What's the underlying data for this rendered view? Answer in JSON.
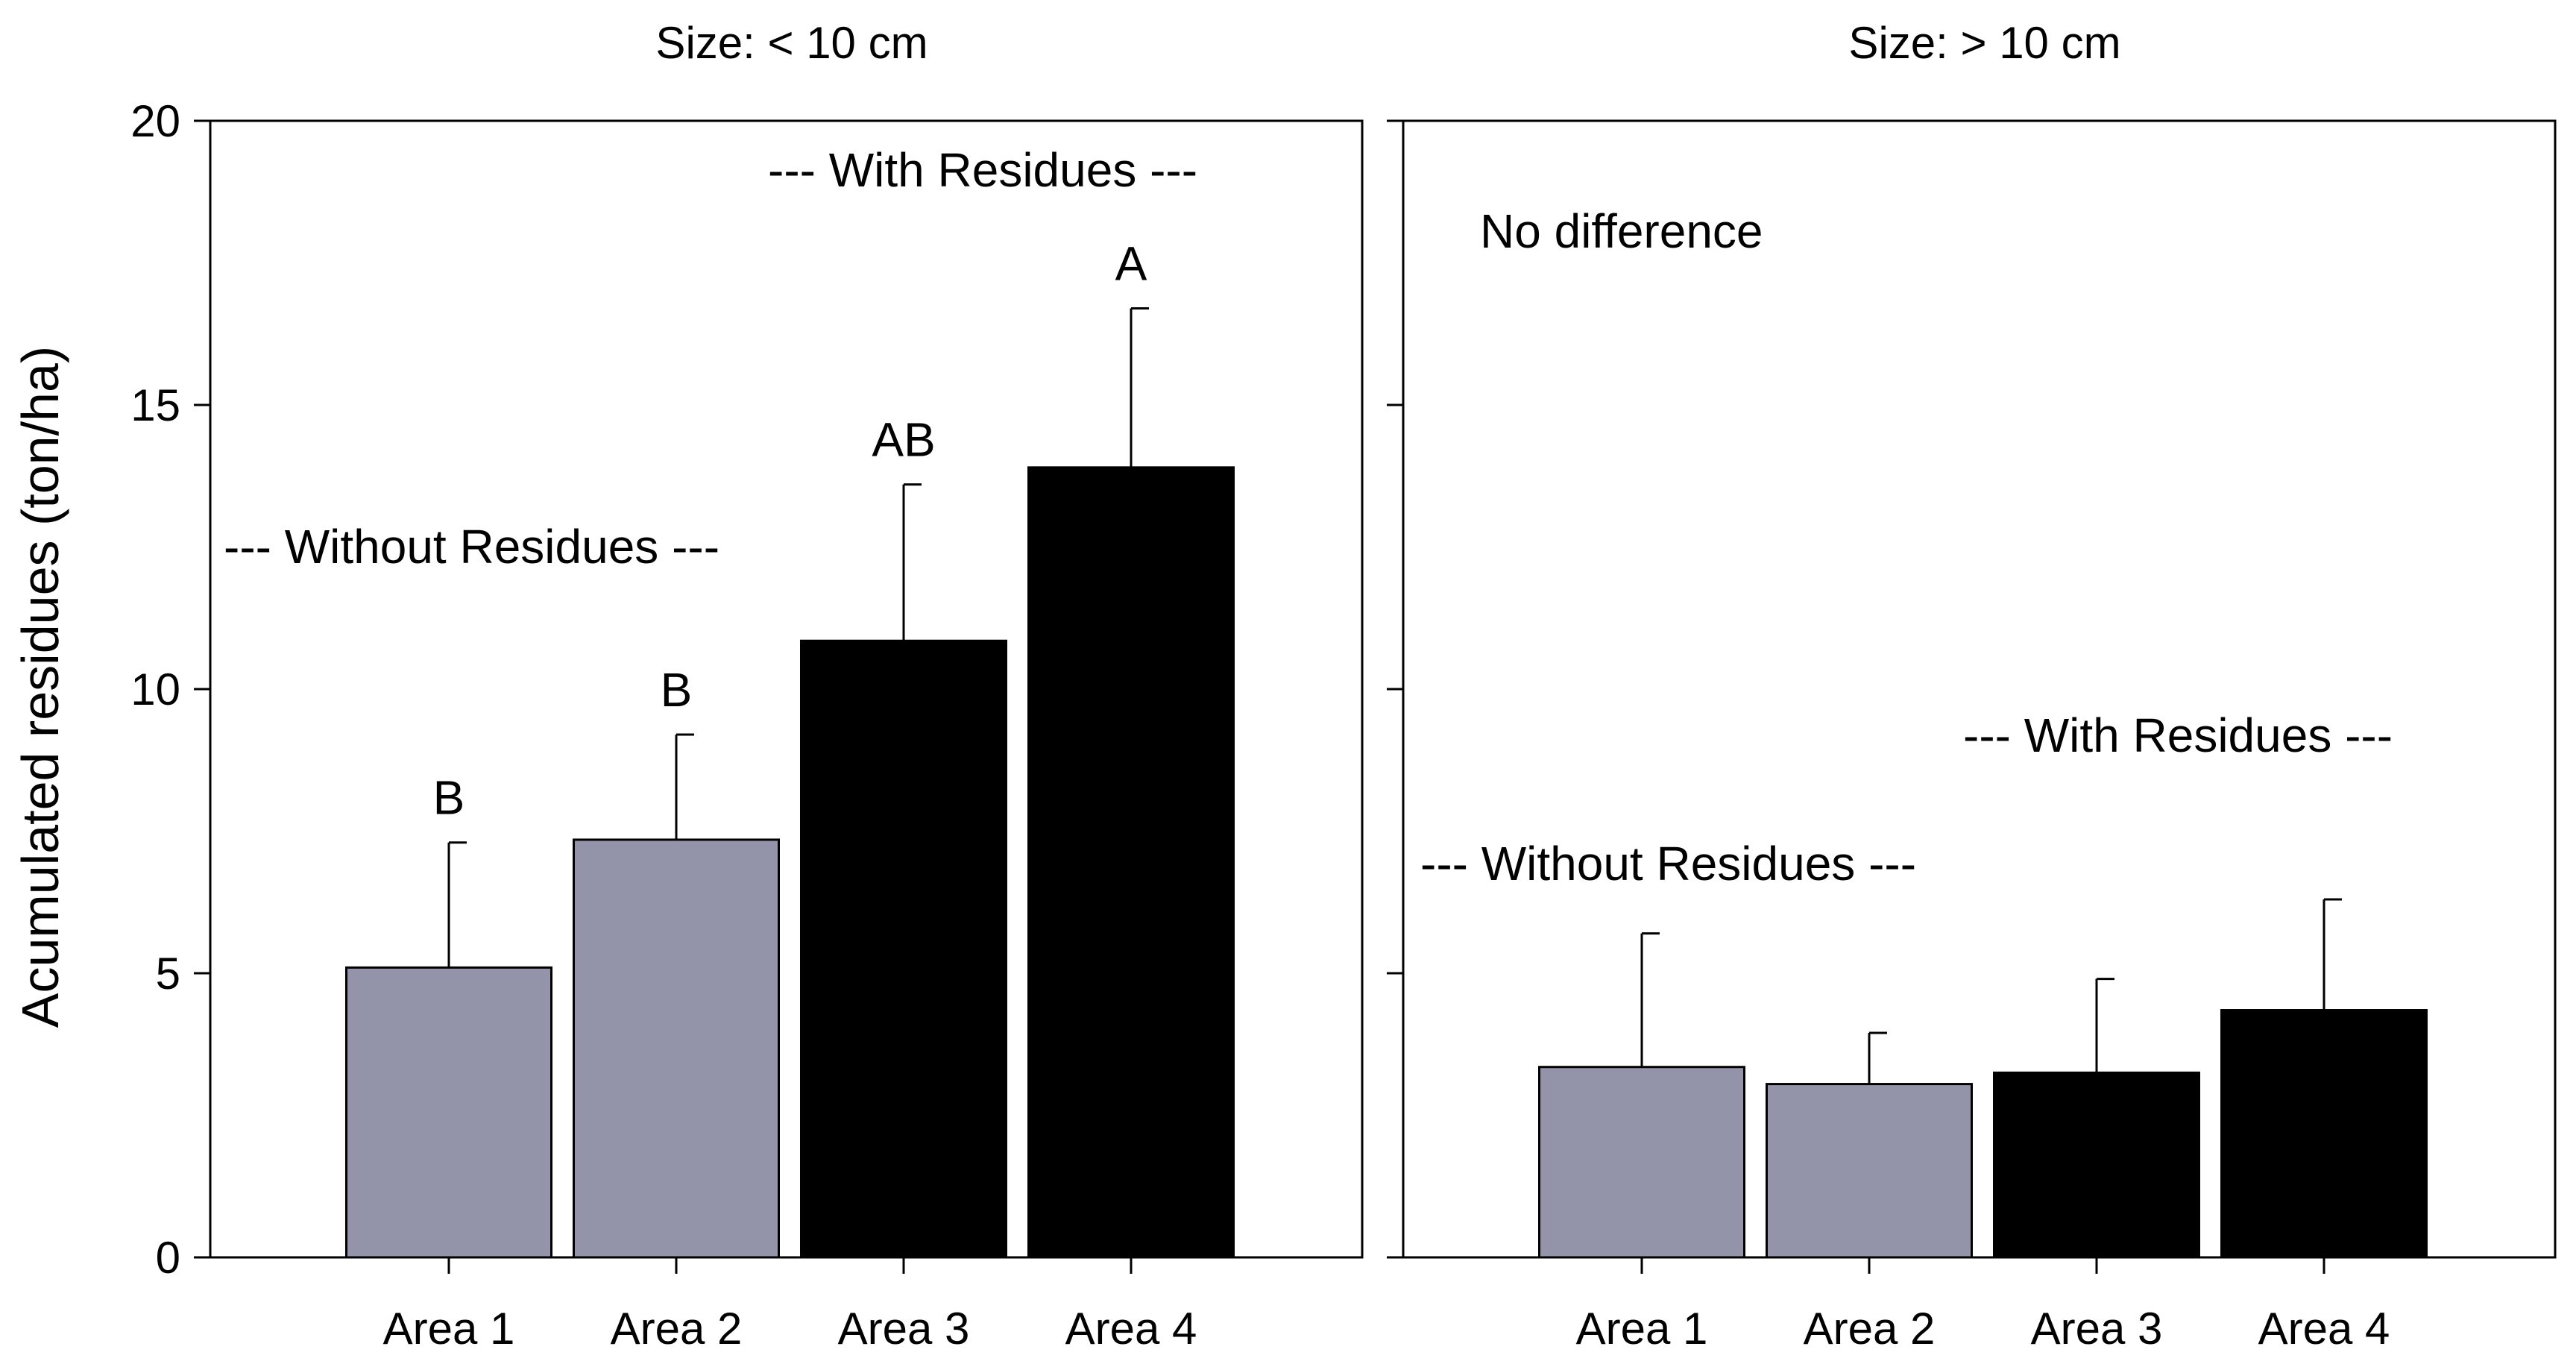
{
  "colors": {
    "without": "#9393aa",
    "with": "#000000",
    "axis": "#000000",
    "background": "#ffffff"
  },
  "chart_data": {
    "type": "bar",
    "ylabel": "Acumulated residues (ton/ha)",
    "ylim": [
      0,
      20
    ],
    "yticks": [
      0,
      5,
      10,
      15,
      20
    ],
    "yticks_text": [
      "0",
      "5",
      "10",
      "15",
      "20"
    ],
    "categories": [
      "Area 1",
      "Area 2",
      "Area 3",
      "Area 4"
    ],
    "groups": [
      "without",
      "without",
      "with",
      "with"
    ],
    "panels": [
      {
        "title": "Size: < 10 cm",
        "values": [
          5.1,
          7.35,
          10.85,
          13.9
        ],
        "errors": [
          2.2,
          1.85,
          2.75,
          2.8
        ],
        "letters": [
          "B",
          "B",
          "AB",
          "A"
        ],
        "annotations": {
          "without": "--- Without Residues ---",
          "with": "--- With Residues ---",
          "note": ""
        }
      },
      {
        "title": "Size: > 10 cm",
        "values": [
          3.35,
          3.05,
          3.25,
          4.35
        ],
        "errors": [
          2.35,
          0.9,
          1.65,
          1.95
        ],
        "letters": [
          "",
          "",
          "",
          ""
        ],
        "annotations": {
          "without": "--- Without Residues ---",
          "with": "--- With Residues ---",
          "note": "No difference"
        }
      }
    ]
  }
}
